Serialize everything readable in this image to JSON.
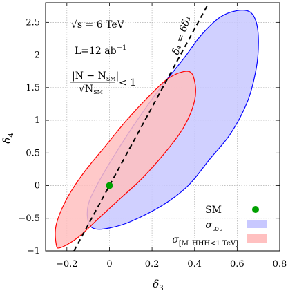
{
  "chart_data": {
    "type": "scatter",
    "xlabel": "δ",
    "xlabel_sub": "3",
    "ylabel": "δ",
    "ylabel_sub": "4",
    "xlim": [
      -0.3,
      0.8
    ],
    "ylim": [
      -1,
      2.8
    ],
    "x_ticks": [
      -0.2,
      0,
      0.2,
      0.4,
      0.6,
      0.8
    ],
    "x_tick_labels": [
      "−0.2",
      "0",
      "0.2",
      "0.4",
      "0.6",
      "0.8"
    ],
    "y_ticks": [
      -1,
      -0.5,
      0,
      0.5,
      1,
      1.5,
      2,
      2.5
    ],
    "y_tick_labels": [
      "−1",
      "−0.5",
      "0",
      "0.5",
      "1",
      "1.5",
      "2",
      "2.5"
    ],
    "grid": true,
    "legend_position": "bottom-right",
    "annotations": {
      "energy": "√s = 6 TeV",
      "luminosity": "L=12 ab",
      "luminosity_sup": "−1",
      "criterion_num": "|N − N",
      "criterion_num_sub": "SM",
      "criterion_den": "√N",
      "criterion_den_sub": "SM",
      "criterion_rhs": "< 1",
      "line_label": "δ₄ = 6δ₃"
    },
    "line": {
      "name": "δ₄ = 6δ₃",
      "slope": 6,
      "intercept": 0,
      "style": "dashed",
      "color": "#000000"
    },
    "regions": [
      {
        "name": "σtot",
        "legend_main": "σ",
        "legend_sub": "tot",
        "stroke": "#0000ff",
        "fill": "#c8c8ff",
        "boundary": [
          [
            0.66,
            2.66
          ],
          [
            0.69,
            2.5
          ],
          [
            0.7,
            2.2
          ],
          [
            0.69,
            1.8
          ],
          [
            0.65,
            1.3
          ],
          [
            0.57,
            0.8
          ],
          [
            0.47,
            0.4
          ],
          [
            0.37,
            0.0
          ],
          [
            0.25,
            -0.3
          ],
          [
            0.1,
            -0.55
          ],
          [
            0.0,
            -0.65
          ],
          [
            -0.07,
            -0.66
          ],
          [
            -0.1,
            -0.55
          ],
          [
            -0.1,
            -0.3
          ],
          [
            -0.06,
            0.0
          ],
          [
            0.03,
            0.5
          ],
          [
            0.13,
            1.0
          ],
          [
            0.24,
            1.5
          ],
          [
            0.35,
            1.95
          ],
          [
            0.43,
            2.3
          ],
          [
            0.52,
            2.58
          ],
          [
            0.6,
            2.68
          ]
        ]
      },
      {
        "name": "σ[MHHH<1 TeV]",
        "legend_main": "σ",
        "legend_sub": "[M_HHH<1 TeV]",
        "stroke": "#ff0000",
        "fill": "#ffc0c0",
        "boundary": [
          [
            0.37,
            1.75
          ],
          [
            0.4,
            1.6
          ],
          [
            0.4,
            1.3
          ],
          [
            0.35,
            0.9
          ],
          [
            0.26,
            0.5
          ],
          [
            0.15,
            0.1
          ],
          [
            0.05,
            -0.2
          ],
          [
            -0.05,
            -0.5
          ],
          [
            -0.15,
            -0.8
          ],
          [
            -0.23,
            -0.95
          ],
          [
            -0.25,
            -0.9
          ],
          [
            -0.25,
            -0.6
          ],
          [
            -0.2,
            -0.2
          ],
          [
            -0.12,
            0.2
          ],
          [
            -0.02,
            0.6
          ],
          [
            0.08,
            1.0
          ],
          [
            0.18,
            1.35
          ],
          [
            0.28,
            1.65
          ]
        ]
      }
    ],
    "points": [
      {
        "name": "SM",
        "x": 0,
        "y": 0,
        "color": "#00a000"
      }
    ]
  }
}
